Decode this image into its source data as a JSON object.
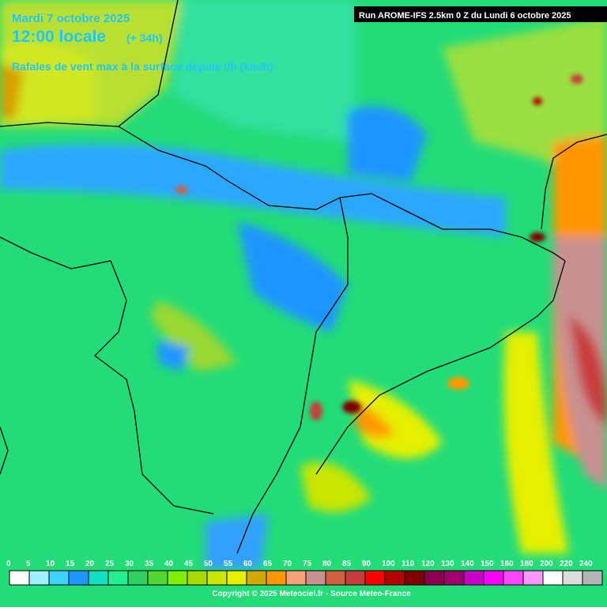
{
  "header": {
    "date": "Mardi 7 octobre 2025",
    "time": "12:00 locale",
    "lead": "(+ 34h)",
    "title": "Rafales de vent max à la surface depuis 0h (km/h)",
    "run": "Run AROME-IFS 2.5km 0 Z du Lundi 6 octobre 2025"
  },
  "legend": {
    "items": [
      {
        "label": 0,
        "color": "#ffffff"
      },
      {
        "label": 5,
        "color": "#a0f0ff"
      },
      {
        "label": 10,
        "color": "#40d0ff"
      },
      {
        "label": 15,
        "color": "#1e96ff"
      },
      {
        "label": 20,
        "color": "#10e0c0"
      },
      {
        "label": 25,
        "color": "#20f090"
      },
      {
        "label": 30,
        "color": "#30d060"
      },
      {
        "label": 35,
        "color": "#50d830"
      },
      {
        "label": 40,
        "color": "#80f000"
      },
      {
        "label": 45,
        "color": "#a8d800"
      },
      {
        "label": 50,
        "color": "#c8e600"
      },
      {
        "label": 55,
        "color": "#e6f000"
      },
      {
        "label": 60,
        "color": "#d2a800"
      },
      {
        "label": 65,
        "color": "#ff9600"
      },
      {
        "label": 70,
        "color": "#f8a078"
      },
      {
        "label": 75,
        "color": "#c89090"
      },
      {
        "label": 80,
        "color": "#d06040"
      },
      {
        "label": 85,
        "color": "#c83c3c"
      },
      {
        "label": 90,
        "color": "#ff0000"
      },
      {
        "label": 100,
        "color": "#b40000"
      },
      {
        "label": 110,
        "color": "#800000"
      },
      {
        "label": 120,
        "color": "#8c0050"
      },
      {
        "label": 130,
        "color": "#a0006e"
      },
      {
        "label": 140,
        "color": "#c800c8"
      },
      {
        "label": 150,
        "color": "#ff00ff"
      },
      {
        "label": 160,
        "color": "#ff46ff"
      },
      {
        "label": 180,
        "color": "#ff96ff"
      },
      {
        "label": 200,
        "color": "#ffffff"
      },
      {
        "label": 220,
        "color": "#dcdcdc"
      },
      {
        "label": 240,
        "color": "#b4b4b4"
      }
    ]
  },
  "footer": {
    "copyright": "Copyright © 2025 Meteociel.fr - Source Meteo-France"
  }
}
